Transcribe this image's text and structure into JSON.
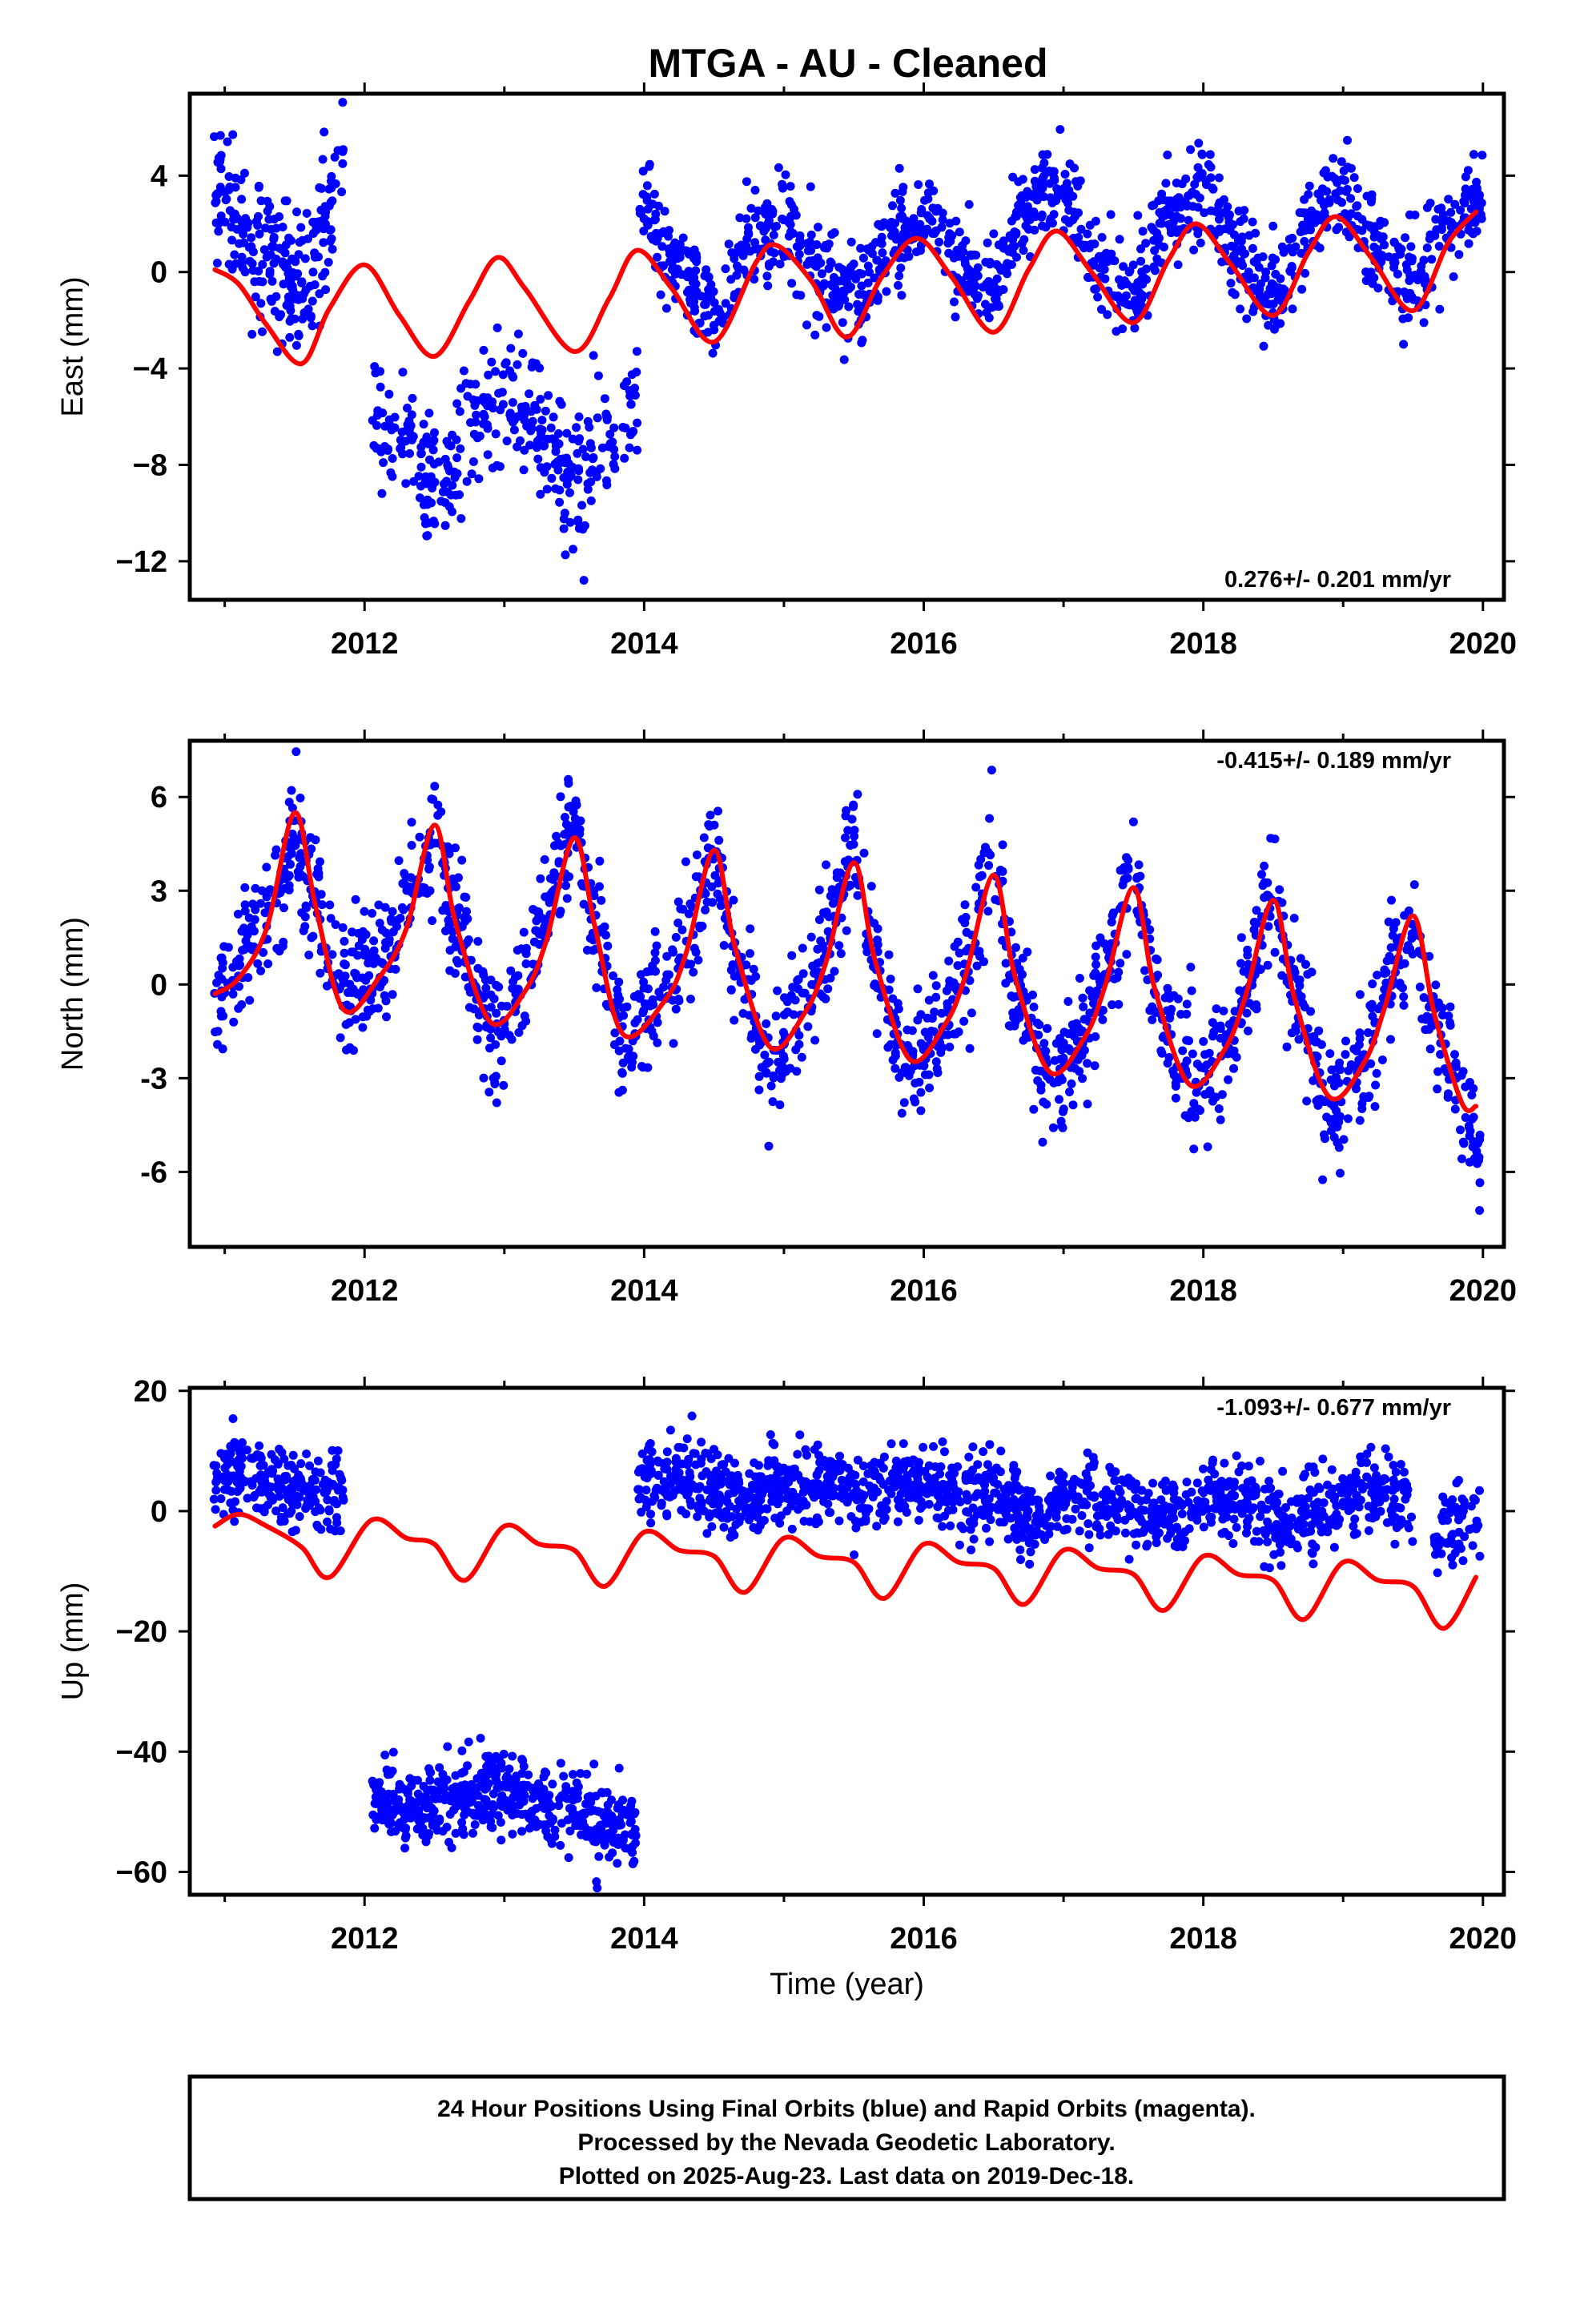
{
  "title": "MTGA  - AU - Cleaned",
  "colors": {
    "points": "#0000ff",
    "model": "#ff0000",
    "frame": "#000000"
  },
  "chart_data": [
    {
      "type": "scatter",
      "name": "east",
      "ylabel": "East (mm)",
      "xlabel": "",
      "xlim": [
        2010.75,
        2020.15
      ],
      "ylim": [
        -13.6,
        7.4
      ],
      "xticks": [
        2012,
        2014,
        2016,
        2018,
        2020
      ],
      "xtick_labels": [
        "2012",
        "2014",
        "2016",
        "2018",
        "2020"
      ],
      "yticks": [
        -12,
        -8,
        -4,
        0,
        4
      ],
      "ytick_labels": [
        "−12",
        "−8",
        "−4",
        "0",
        "4"
      ],
      "rate": "0.276+/- 0.201 mm/yr",
      "rate_position": "bottom-right",
      "model": {
        "x": [
          2010.93,
          2011.1,
          2011.3,
          2011.55,
          2011.75,
          2012.0,
          2012.25,
          2012.5,
          2012.75,
          2012.95,
          2013.15,
          2013.5,
          2013.75,
          2013.95,
          2014.2,
          2014.5,
          2014.8,
          2014.95,
          2015.2,
          2015.45,
          2015.7,
          2015.95,
          2016.2,
          2016.5,
          2016.75,
          2016.95,
          2017.2,
          2017.5,
          2017.75,
          2017.95,
          2018.2,
          2018.5,
          2018.75,
          2018.95,
          2019.2,
          2019.5,
          2019.75,
          2019.95
        ],
        "y": [
          0.1,
          -0.5,
          -2.2,
          -3.8,
          -1.5,
          0.3,
          -1.8,
          -3.5,
          -1.2,
          0.6,
          -0.7,
          -3.3,
          -1.1,
          0.9,
          -0.7,
          -2.9,
          0.4,
          1.1,
          -0.4,
          -2.7,
          -0.2,
          1.4,
          -0.2,
          -2.5,
          0.1,
          1.7,
          0.0,
          -2.1,
          0.5,
          2.0,
          0.3,
          -1.8,
          0.8,
          2.3,
          0.6,
          -1.6,
          1.2,
          2.5
        ]
      },
      "clusters": [
        {
          "x": [
            2010.92,
            2011.85
          ],
          "xk": [
            2010.92,
            2011.1,
            2011.3,
            2011.55,
            2011.7,
            2011.85
          ],
          "yk": [
            3.8,
            1.8,
            0.5,
            -0.8,
            1.5,
            4.5
          ],
          "spread": 1.5,
          "count": 240
        },
        {
          "x": [
            2012.05,
            2013.95
          ],
          "xk": [
            2012.05,
            2012.3,
            2012.5,
            2012.75,
            2013.0,
            2013.2,
            2013.5,
            2013.75,
            2013.95
          ],
          "yk": [
            -5.8,
            -7.2,
            -9.0,
            -6.2,
            -5.2,
            -6.0,
            -9.0,
            -6.6,
            -5.0
          ],
          "spread": 1.4,
          "count": 340
        },
        {
          "x": [
            2013.95,
            2020.0
          ],
          "xk": [
            2013.95,
            2014.2,
            2014.5,
            2014.8,
            2015.0,
            2015.3,
            2015.5,
            2015.8,
            2016.0,
            2016.25,
            2016.5,
            2016.75,
            2016.95,
            2017.25,
            2017.5,
            2017.8,
            2018.0,
            2018.25,
            2018.5,
            2018.8,
            2018.95,
            2019.25,
            2019.5,
            2019.75,
            2020.0
          ],
          "yk": [
            2.6,
            0.6,
            -1.6,
            1.4,
            2.0,
            -0.2,
            -0.8,
            1.4,
            2.2,
            0.3,
            -0.8,
            2.6,
            3.6,
            0.5,
            -0.8,
            2.5,
            3.6,
            0.7,
            -1.0,
            2.3,
            3.3,
            0.8,
            -0.7,
            1.8,
            3.0
          ],
          "spread": 1.0,
          "count": 1250
        }
      ]
    },
    {
      "type": "scatter",
      "name": "north",
      "ylabel": "North (mm)",
      "xlabel": "",
      "xlim": [
        2010.75,
        2020.15
      ],
      "ylim": [
        -8.4,
        7.8
      ],
      "xticks": [
        2012,
        2014,
        2016,
        2018,
        2020
      ],
      "xtick_labels": [
        "2012",
        "2014",
        "2016",
        "2018",
        "2020"
      ],
      "yticks": [
        -6,
        -3,
        0,
        3,
        6
      ],
      "ytick_labels": [
        "-6",
        "-3",
        "0",
        "3",
        "6"
      ],
      "rate": "-0.415+/- 0.189 mm/yr",
      "rate_position": "top-right",
      "model": {
        "x": [
          2010.93,
          2011.1,
          2011.3,
          2011.5,
          2011.65,
          2011.85,
          2012.1,
          2012.3,
          2012.5,
          2012.65,
          2012.9,
          2013.15,
          2013.3,
          2013.5,
          2013.65,
          2013.85,
          2014.15,
          2014.3,
          2014.5,
          2014.65,
          2014.9,
          2015.15,
          2015.3,
          2015.5,
          2015.65,
          2015.9,
          2016.15,
          2016.3,
          2016.5,
          2016.65,
          2016.9,
          2017.15,
          2017.3,
          2017.5,
          2017.65,
          2017.9,
          2018.15,
          2018.3,
          2018.5,
          2018.65,
          2018.9,
          2019.15,
          2019.3,
          2019.5,
          2019.65,
          2019.85,
          2019.95
        ],
        "y": [
          -0.3,
          0.2,
          1.8,
          5.5,
          2.5,
          -0.8,
          0.2,
          1.8,
          5.1,
          2.0,
          -1.2,
          -0.2,
          1.4,
          4.7,
          1.8,
          -1.6,
          -0.5,
          1.0,
          4.3,
          1.2,
          -2.0,
          -0.9,
          0.7,
          3.9,
          0.8,
          -2.4,
          -1.3,
          0.3,
          3.5,
          0.3,
          -2.8,
          -1.7,
          0.0,
          3.1,
          -0.1,
          -3.2,
          -2.1,
          -0.4,
          2.7,
          -0.4,
          -3.6,
          -2.5,
          -0.7,
          2.2,
          -0.9,
          -3.8,
          -3.9
        ]
      },
      "clusters": [
        {
          "x": [
            2010.92,
            2019.98
          ],
          "xk": [
            2010.92,
            2011.15,
            2011.35,
            2011.5,
            2011.65,
            2011.85,
            2012.1,
            2012.3,
            2012.5,
            2012.65,
            2012.9,
            2013.15,
            2013.3,
            2013.5,
            2013.65,
            2013.85,
            2014.15,
            2014.3,
            2014.5,
            2014.65,
            2014.9,
            2015.15,
            2015.3,
            2015.5,
            2015.65,
            2015.9,
            2016.15,
            2016.3,
            2016.5,
            2016.65,
            2016.9,
            2017.15,
            2017.3,
            2017.5,
            2017.65,
            2017.9,
            2018.15,
            2018.3,
            2018.5,
            2018.65,
            2018.9,
            2019.15,
            2019.3,
            2019.5,
            2019.65,
            2019.85,
            2019.98
          ],
          "yk": [
            -0.8,
            1.0,
            3.0,
            4.5,
            2.5,
            0.0,
            0.5,
            2.5,
            4.8,
            2.0,
            -1.5,
            0.2,
            2.5,
            5.0,
            2.0,
            -1.5,
            -0.2,
            1.5,
            4.5,
            0.8,
            -2.3,
            -0.8,
            1.2,
            4.3,
            0.5,
            -2.5,
            -1.3,
            0.8,
            3.8,
            0.0,
            -3.0,
            -1.6,
            0.4,
            3.6,
            -0.3,
            -3.0,
            -2.0,
            0.0,
            3.0,
            -0.6,
            -3.6,
            -2.6,
            -0.3,
            2.0,
            -1.0,
            -4.0,
            -5.5
          ],
          "spread": 1.0,
          "count": 1850
        }
      ]
    },
    {
      "type": "scatter",
      "name": "up",
      "ylabel": "Up (mm)",
      "xlabel": "Time (year)",
      "xlim": [
        2010.75,
        2020.15
      ],
      "ylim": [
        -63.8,
        20.5
      ],
      "xticks": [
        2012,
        2014,
        2016,
        2018,
        2020
      ],
      "xtick_labels": [
        "2012",
        "2014",
        "2016",
        "2018",
        "2020"
      ],
      "yticks": [
        -60,
        -40,
        -20,
        0,
        20
      ],
      "ytick_labels": [
        "−60",
        "−40",
        "−20",
        "0",
        "20"
      ],
      "rate": "-1.093+/- 0.677 mm/yr",
      "rate_position": "top-right",
      "model": {
        "x": [
          2010.93,
          2011.1,
          2011.3,
          2011.55,
          2011.75,
          2012.05,
          2012.3,
          2012.5,
          2012.72,
          2013.0,
          2013.25,
          2013.5,
          2013.72,
          2014.0,
          2014.25,
          2014.5,
          2014.72,
          2015.0,
          2015.25,
          2015.5,
          2015.72,
          2016.0,
          2016.25,
          2016.5,
          2016.72,
          2017.0,
          2017.25,
          2017.5,
          2017.72,
          2018.0,
          2018.25,
          2018.5,
          2018.72,
          2019.0,
          2019.25,
          2019.5,
          2019.72,
          2019.95
        ],
        "y": [
          -2.5,
          -0.5,
          -2.5,
          -6.0,
          -11.0,
          -1.5,
          -4.5,
          -5.5,
          -11.5,
          -2.5,
          -5.5,
          -6.5,
          -12.5,
          -3.5,
          -6.5,
          -7.5,
          -13.5,
          -4.5,
          -7.5,
          -8.5,
          -14.5,
          -5.5,
          -8.5,
          -9.5,
          -15.5,
          -6.5,
          -9.5,
          -10.5,
          -16.5,
          -7.5,
          -10.5,
          -11.5,
          -18.0,
          -8.5,
          -11.5,
          -12.5,
          -19.5,
          -11.0
        ]
      },
      "clusters": [
        {
          "x": [
            2010.92,
            2011.85
          ],
          "xk": [
            2010.92,
            2011.15,
            2011.35,
            2011.55,
            2011.85
          ],
          "yk": [
            5.5,
            6.5,
            5.0,
            2.0,
            3.0
          ],
          "spread": 3.0,
          "count": 220
        },
        {
          "x": [
            2012.05,
            2013.95
          ],
          "xk": [
            2012.05,
            2012.5,
            2013.0,
            2013.5,
            2013.95
          ],
          "yk": [
            -48.0,
            -49.0,
            -46.5,
            -50.0,
            -53.0
          ],
          "spread": 3.3,
          "count": 520
        },
        {
          "x": [
            2013.95,
            2019.5
          ],
          "xk": [
            2013.95,
            2014.3,
            2014.7,
            2015.0,
            2015.5,
            2016.0,
            2016.5,
            2016.8,
            2017.0,
            2017.5,
            2017.8,
            2018.0,
            2018.3,
            2018.6,
            2018.8,
            2019.2,
            2019.5
          ],
          "yk": [
            6.0,
            5.0,
            2.0,
            4.5,
            2.5,
            4.5,
            2.0,
            -2.0,
            2.0,
            0.5,
            -1.0,
            2.0,
            2.0,
            -3.0,
            0.0,
            3.5,
            2.0
          ],
          "spread": 3.3,
          "count": 1350
        },
        {
          "x": [
            2019.65,
            2019.98
          ],
          "xk": [
            2019.65,
            2019.98
          ],
          "yk": [
            -3.0,
            -1.0
          ],
          "spread": 4.0,
          "count": 60
        }
      ]
    }
  ],
  "footer": {
    "line1": "24 Hour Positions Using Final Orbits (blue) and Rapid Orbits (magenta).",
    "line2": "Processed by the Nevada Geodetic Laboratory.",
    "line3": "Plotted on 2025-Aug-23. Last data on 2019-Dec-18."
  }
}
